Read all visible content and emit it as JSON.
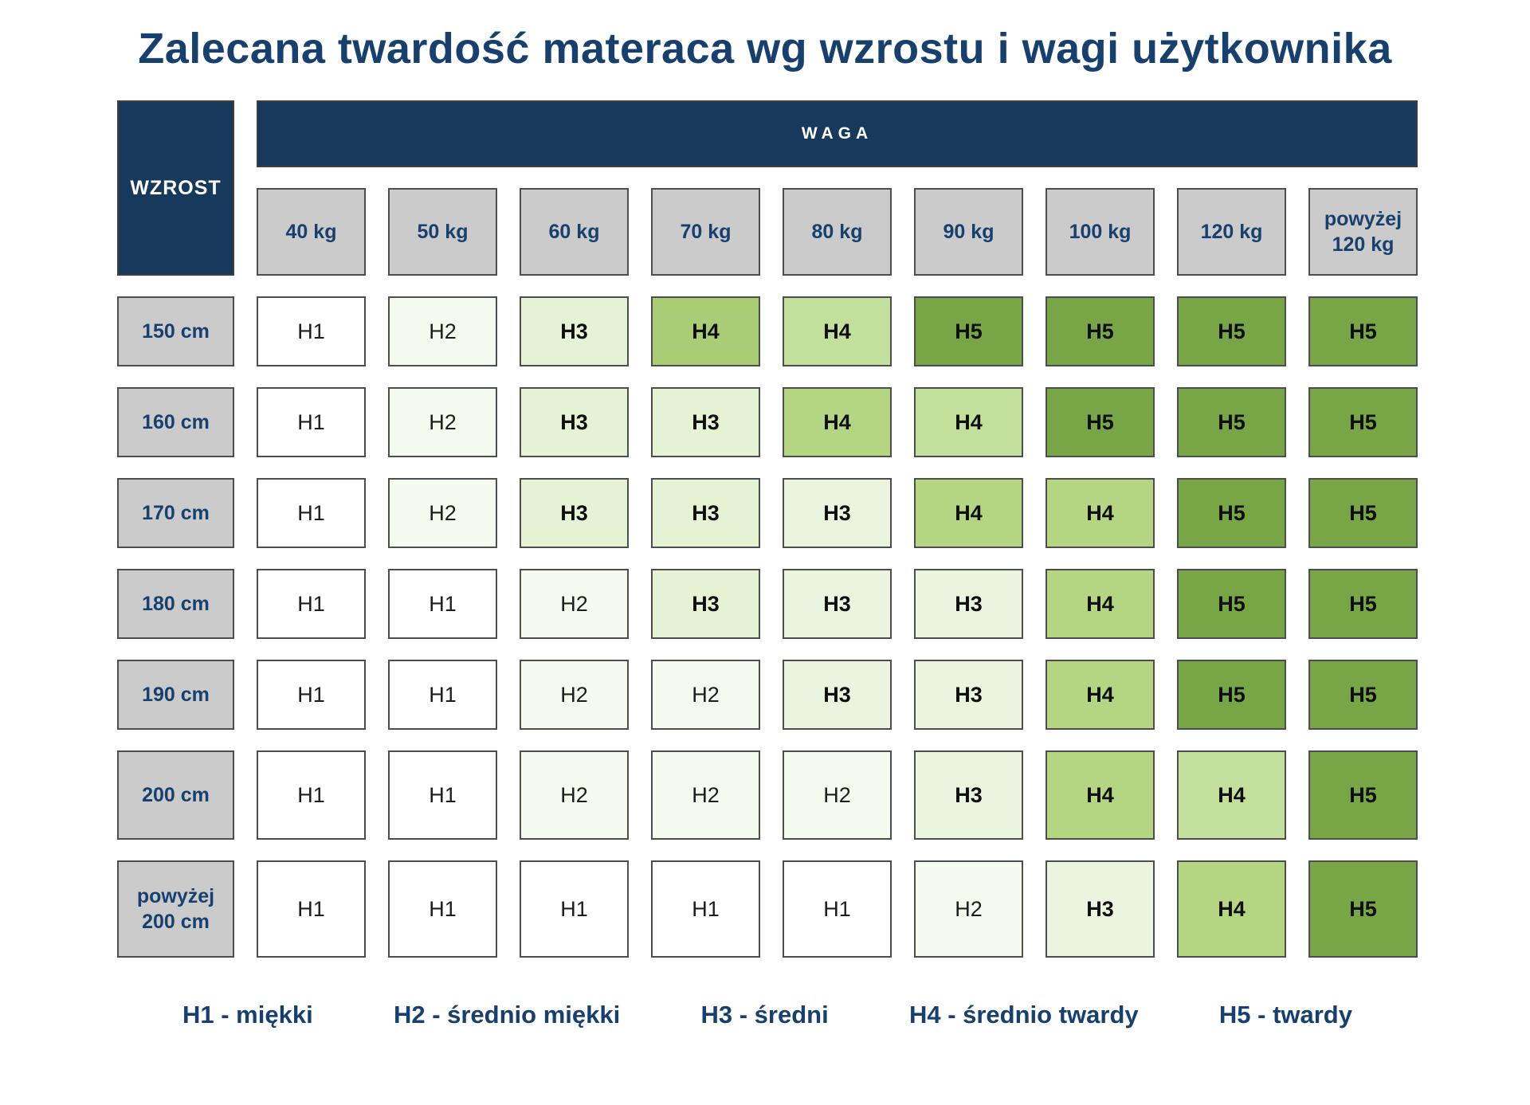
{
  "page": {
    "background_color": "#FFFFFF",
    "navy_fill": "#16395C",
    "navy_text": "#17406E",
    "gray_fill": "#CBCBCB",
    "cell_border": "#4D4D4D"
  },
  "chart_data": {
    "type": "heatmap",
    "title": "Zalecana twardość materaca wg wzrostu i wagi użytkownika",
    "x_axis_label": "WAGA",
    "y_axis_label": "WZROST",
    "x_categories": [
      "40 kg",
      "50 kg",
      "60 kg",
      "70 kg",
      "80 kg",
      "90 kg",
      "100 kg",
      "120 kg",
      "powyżej\n120 kg"
    ],
    "y_categories": [
      "150 cm",
      "160 cm",
      "170 cm",
      "180 cm",
      "190 cm",
      "200 cm",
      "powyżej\n200 cm"
    ],
    "values": [
      [
        "H1",
        "H2",
        "H3",
        "H4",
        "H4",
        "H5",
        "H5",
        "H5",
        "H5"
      ],
      [
        "H1",
        "H2",
        "H3",
        "H3",
        "H4",
        "H4",
        "H5",
        "H5",
        "H5"
      ],
      [
        "H1",
        "H2",
        "H3",
        "H3",
        "H3",
        "H4",
        "H4",
        "H5",
        "H5"
      ],
      [
        "H1",
        "H1",
        "H2",
        "H3",
        "H3",
        "H3",
        "H4",
        "H5",
        "H5"
      ],
      [
        "H1",
        "H1",
        "H2",
        "H2",
        "H3",
        "H3",
        "H4",
        "H5",
        "H5"
      ],
      [
        "H1",
        "H1",
        "H2",
        "H2",
        "H2",
        "H3",
        "H4",
        "H4",
        "H5"
      ],
      [
        "H1",
        "H1",
        "H1",
        "H1",
        "H1",
        "H2",
        "H3",
        "H4",
        "H5"
      ]
    ],
    "cell_colors": [
      [
        "white",
        "h2_pale",
        "h3_light",
        "h4_strong",
        "h4_pale",
        "h5_dark",
        "h5_dark",
        "h5_dark",
        "h5_dark"
      ],
      [
        "white",
        "h2_pale",
        "h3_light",
        "h3_light",
        "h4_medium",
        "h4_pale",
        "h5_dark",
        "h5_dark",
        "h5_dark"
      ],
      [
        "white",
        "h2_pale",
        "h3_light",
        "h3_light",
        "h3_pale",
        "h4_medium",
        "h4_medium",
        "h5_dark",
        "h5_dark"
      ],
      [
        "white",
        "white",
        "h2_pale",
        "h3_light",
        "h3_pale",
        "h3_pale",
        "h4_medium",
        "h5_dark",
        "h5_dark"
      ],
      [
        "white",
        "white",
        "h2_pale",
        "h2_pale",
        "h3_pale",
        "h3_pale",
        "h4_medium",
        "h5_dark",
        "h5_dark"
      ],
      [
        "white",
        "white",
        "h2_pale",
        "h2_pale",
        "h2_pale",
        "h3_pale",
        "h4_medium",
        "h4_pale",
        "h5_dark"
      ],
      [
        "white",
        "white",
        "white",
        "white",
        "white",
        "h2_pale",
        "h3_pale",
        "h4_medium",
        "h5_dark"
      ]
    ],
    "palette": {
      "white": "#FFFFFF",
      "h2_pale": "#F4FAEE",
      "h3_light": "#E5F2D4",
      "h3_pale": "#EAF4DE",
      "h4_strong": "#A9CD74",
      "h4_medium": "#B4D682",
      "h4_pale": "#C2DF9B",
      "h5_dark": "#78A545"
    },
    "legend": [
      "H1 - miękki",
      "H2 - średnio miękki",
      "H3 - średni",
      "H4 - średnio twardy",
      "H5 - twardy"
    ],
    "bold_values": [
      "H3",
      "H4",
      "H5"
    ]
  }
}
